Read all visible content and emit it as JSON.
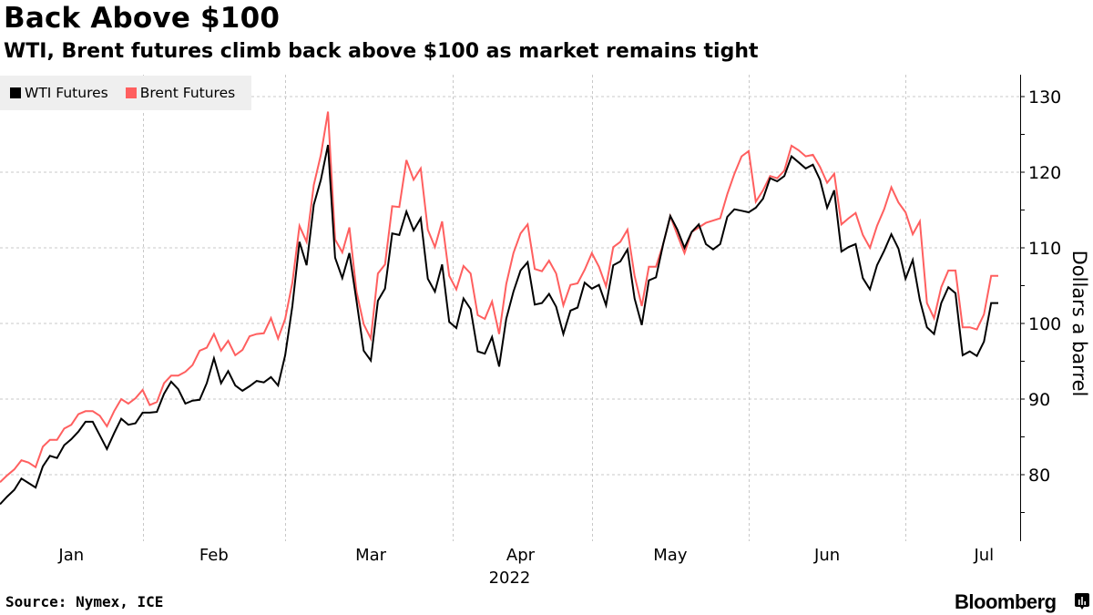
{
  "header": {
    "title": "Back Above $100",
    "subtitle": "WTI, Brent futures climb back above $100 as market remains tight"
  },
  "legend": [
    {
      "label": "WTI Futures",
      "color": "#000000"
    },
    {
      "label": "Brent Futures",
      "color": "#ff5f5f"
    }
  ],
  "footer": {
    "source": "Source: Nymex, ICE",
    "brand": "Bloomberg",
    "brand_icon": "bloomberg-chart-icon"
  },
  "chart_data": {
    "type": "line",
    "title": "Back Above $100",
    "subtitle": "WTI, Brent futures climb back above $100 as market remains tight",
    "xlabel": "2022",
    "ylabel": "Dollars a barrel",
    "ylim": [
      72,
      133
    ],
    "yticks": [
      80,
      90,
      100,
      110,
      120,
      130
    ],
    "y_axis_side": "right",
    "grid": true,
    "legend_position": "top-left",
    "x_count": 141,
    "x_month_labels": [
      {
        "label": "Jan",
        "index": 10
      },
      {
        "label": "Feb",
        "index": 30
      },
      {
        "label": "Mar",
        "index": 52
      },
      {
        "label": "Apr",
        "index": 73
      },
      {
        "label": "May",
        "index": 94
      },
      {
        "label": "Jun",
        "index": 116
      },
      {
        "label": "Jul",
        "index": 138
      }
    ],
    "x_gridline_indices": [
      20,
      40,
      63.5,
      83,
      105,
      127
    ],
    "year_label": {
      "label": "2022",
      "index": 73
    },
    "series": [
      {
        "name": "WTI Futures",
        "color": "#000000",
        "values": [
          76.1,
          77.1,
          78.0,
          79.5,
          78.9,
          78.3,
          81.1,
          82.5,
          82.2,
          83.9,
          84.7,
          85.7,
          87.0,
          87.0,
          85.2,
          83.4,
          85.5,
          87.4,
          86.6,
          86.8,
          88.2,
          88.2,
          88.3,
          90.7,
          92.3,
          91.3,
          89.4,
          89.8,
          89.9,
          92.1,
          95.4,
          92.1,
          93.7,
          91.8,
          91.1,
          91.7,
          92.4,
          92.2,
          92.9,
          91.8,
          95.8,
          102.3,
          110.8,
          107.7,
          115.7,
          119.0,
          123.6,
          108.7,
          106.0,
          109.3,
          103.0,
          96.4,
          95.1,
          103.0,
          104.6,
          111.9,
          111.7,
          114.8,
          112.3,
          113.9,
          105.9,
          104.2,
          107.8,
          100.2,
          99.4,
          103.3,
          101.9,
          96.3,
          96.0,
          98.2,
          94.3,
          100.6,
          104.2,
          107.0,
          108.1,
          102.5,
          102.7,
          103.9,
          102.2,
          98.6,
          101.7,
          102.1,
          105.4,
          104.6,
          105.1,
          102.4,
          107.7,
          108.2,
          109.8,
          103.3,
          99.8,
          105.7,
          106.1,
          110.5,
          114.2,
          112.4,
          110.0,
          112.1,
          113.1,
          110.5,
          109.8,
          110.5,
          114.1,
          115.1,
          114.9,
          114.7,
          115.3,
          116.5,
          119.2,
          118.8,
          119.5,
          122.1,
          121.3,
          120.5,
          121.0,
          119.0,
          115.3,
          117.6,
          109.5,
          110.1,
          110.5,
          106.0,
          104.5,
          107.7,
          109.6,
          111.8,
          109.9,
          105.9,
          108.4,
          103.1,
          99.5,
          98.6,
          102.7,
          104.8,
          104.0,
          95.8,
          96.3,
          95.7,
          97.6,
          102.7,
          102.7
        ]
      },
      {
        "name": "Brent Futures",
        "color": "#ff5f5f",
        "values": [
          79.0,
          79.9,
          80.7,
          81.9,
          81.6,
          81.0,
          83.7,
          84.6,
          84.6,
          86.1,
          86.6,
          88.0,
          88.4,
          88.4,
          87.8,
          86.4,
          88.4,
          90.0,
          89.4,
          90.1,
          91.2,
          89.2,
          89.6,
          92.1,
          93.1,
          93.1,
          93.6,
          94.5,
          96.4,
          96.8,
          98.6,
          96.4,
          97.7,
          95.8,
          96.5,
          98.3,
          98.6,
          98.7,
          100.7,
          98.0,
          100.6,
          105.4,
          112.9,
          110.8,
          118.3,
          122.3,
          128.0,
          111.1,
          109.4,
          112.7,
          104.2,
          99.9,
          98.0,
          106.6,
          107.8,
          115.5,
          115.4,
          121.6,
          119.0,
          120.5,
          112.4,
          110.1,
          113.5,
          106.3,
          104.5,
          107.6,
          106.6,
          101.1,
          100.6,
          102.9,
          98.6,
          105.2,
          109.3,
          111.9,
          113.1,
          107.2,
          106.9,
          108.3,
          106.6,
          102.4,
          105.1,
          105.3,
          107.1,
          109.3,
          107.5,
          104.9,
          110.1,
          110.8,
          112.4,
          106.3,
          102.3,
          107.5,
          107.5,
          110.5,
          114.2,
          111.7,
          109.3,
          112.1,
          112.7,
          113.3,
          113.6,
          113.9,
          117.1,
          119.8,
          122.1,
          122.8,
          116.1,
          117.6,
          119.5,
          119.2,
          120.2,
          123.5,
          122.9,
          122.1,
          122.3,
          120.7,
          118.6,
          119.8,
          113.1,
          113.9,
          114.6,
          111.7,
          110.0,
          112.9,
          115.1,
          118.0,
          116.0,
          114.7,
          111.8,
          113.5,
          102.7,
          100.7,
          104.8,
          107.0,
          107.0,
          99.5,
          99.5,
          99.2,
          101.2,
          106.3,
          106.3
        ]
      }
    ]
  }
}
